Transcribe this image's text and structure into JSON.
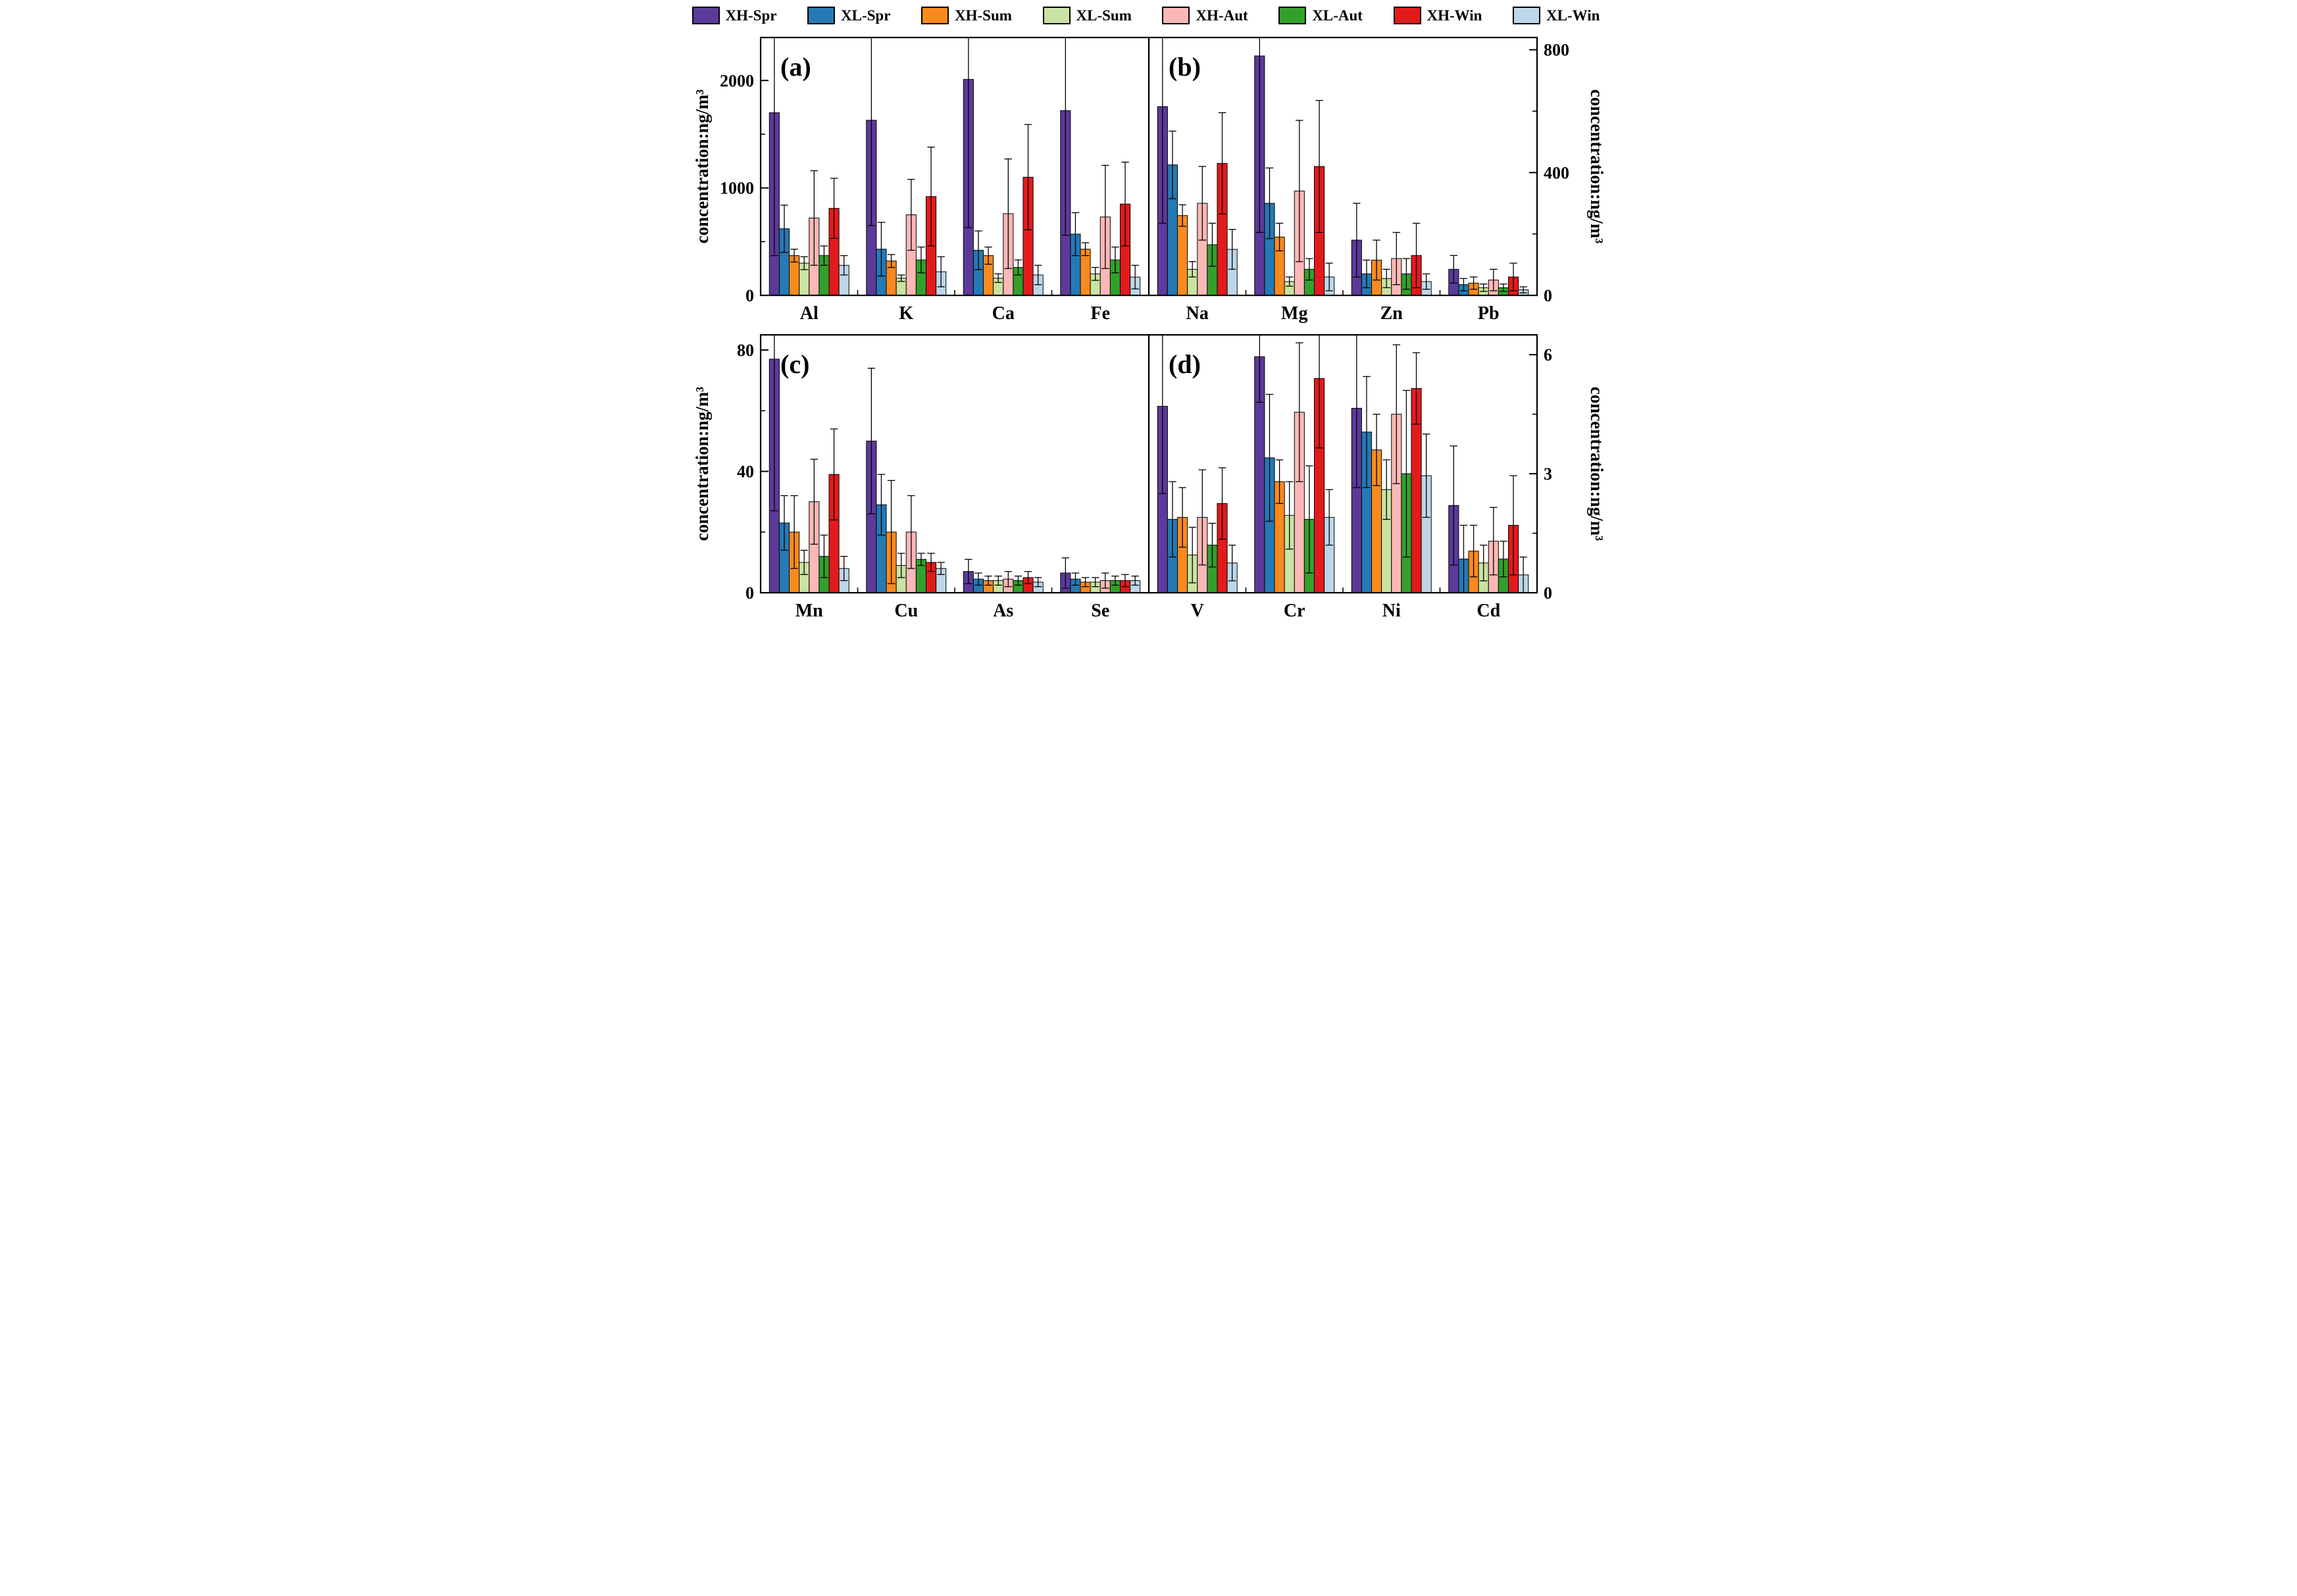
{
  "legend": {
    "items": [
      {
        "label": "XH-Spr",
        "color": "#5C3A99"
      },
      {
        "label": "XL-Spr",
        "color": "#2579B5"
      },
      {
        "label": "XH-Sum",
        "color": "#FB8A1E"
      },
      {
        "label": "XL-Sum",
        "color": "#C9E3A2"
      },
      {
        "label": "XH-Aut",
        "color": "#FBB8B6"
      },
      {
        "label": "XL-Aut",
        "color": "#33A02C"
      },
      {
        "label": "XH-Win",
        "color": "#E31A1C"
      },
      {
        "label": "XL-Win",
        "color": "#BDD7E8"
      }
    ]
  },
  "chart_data": {
    "type": "bar",
    "description": "Grouped bar chart with error bars, 4 panels (a)-(d), seasonal element concentrations at sites XH and XL",
    "series_order": [
      "XH-Spr",
      "XL-Spr",
      "XH-Sum",
      "XL-Sum",
      "XH-Aut",
      "XL-Aut",
      "XH-Win",
      "XL-Win"
    ],
    "panels": [
      {
        "id": "a",
        "label": "(a)",
        "axis_side": "left",
        "ylabel": "concentration:ng/m³",
        "ylim": [
          0,
          2400
        ],
        "yticks": [
          0,
          1000,
          2000
        ],
        "yminor": [
          500,
          1500
        ],
        "categories": [
          "Al",
          "K",
          "Ca",
          "Fe"
        ],
        "series": [
          {
            "name": "XH-Spr",
            "values": [
              1700,
              1630,
              2010,
              1720
            ],
            "errors": [
              1330,
              980,
              1380,
              1160
            ]
          },
          {
            "name": "XL-Spr",
            "values": [
              620,
              430,
              420,
              570
            ],
            "errors": [
              220,
              250,
              180,
              200
            ]
          },
          {
            "name": "XH-Sum",
            "values": [
              370,
              320,
              370,
              430
            ],
            "errors": [
              60,
              60,
              80,
              60
            ]
          },
          {
            "name": "XL-Sum",
            "values": [
              300,
              160,
              160,
              200
            ],
            "errors": [
              60,
              30,
              40,
              60
            ]
          },
          {
            "name": "XH-Aut",
            "values": [
              720,
              750,
              760,
              730
            ],
            "errors": [
              440,
              330,
              510,
              480
            ]
          },
          {
            "name": "XL-Aut",
            "values": [
              370,
              330,
              260,
              330
            ],
            "errors": [
              90,
              120,
              70,
              120
            ]
          },
          {
            "name": "XH-Win",
            "values": [
              810,
              920,
              1100,
              850
            ],
            "errors": [
              280,
              460,
              490,
              390
            ]
          },
          {
            "name": "XL-Win",
            "values": [
              280,
              220,
              190,
              170
            ],
            "errors": [
              90,
              140,
              90,
              110
            ]
          }
        ]
      },
      {
        "id": "b",
        "label": "(b)",
        "axis_side": "right",
        "ylabel": "concentration:ng/m³",
        "ylim": [
          0,
          840
        ],
        "yticks": [
          0,
          400,
          800
        ],
        "yminor": [
          200,
          600
        ],
        "categories": [
          "Na",
          "Mg",
          "Zn",
          "Pb"
        ],
        "series": [
          {
            "name": "XH-Spr",
            "values": [
              615,
              780,
              180,
              85
            ],
            "errors": [
              380,
              575,
              120,
              45
            ]
          },
          {
            "name": "XL-Spr",
            "values": [
              425,
              300,
              70,
              35
            ],
            "errors": [
              110,
              115,
              45,
              20
            ]
          },
          {
            "name": "XH-Sum",
            "values": [
              260,
              190,
              115,
              40
            ],
            "errors": [
              35,
              45,
              65,
              20
            ]
          },
          {
            "name": "XL-Sum",
            "values": [
              85,
              45,
              55,
              25
            ],
            "errors": [
              25,
              15,
              30,
              12
            ]
          },
          {
            "name": "XH-Aut",
            "values": [
              300,
              340,
              120,
              50
            ],
            "errors": [
              120,
              230,
              85,
              35
            ]
          },
          {
            "name": "XL-Aut",
            "values": [
              165,
              85,
              70,
              25
            ],
            "errors": [
              70,
              35,
              50,
              12
            ]
          },
          {
            "name": "XH-Win",
            "values": [
              430,
              420,
              130,
              60
            ],
            "errors": [
              165,
              215,
              105,
              45
            ]
          },
          {
            "name": "XL-Win",
            "values": [
              150,
              60,
              45,
              18
            ],
            "errors": [
              65,
              45,
              25,
              10
            ]
          }
        ]
      },
      {
        "id": "c",
        "label": "(c)",
        "axis_side": "left",
        "ylabel": "concentration:ng/m³",
        "ylim": [
          0,
          85
        ],
        "yticks": [
          0,
          40,
          80
        ],
        "yminor": [
          20,
          60
        ],
        "categories": [
          "Mn",
          "Cu",
          "As",
          "Se"
        ],
        "series": [
          {
            "name": "XH-Spr",
            "values": [
              77,
              50,
              7,
              6.5
            ],
            "errors": [
              50,
              24,
              4,
              5
            ]
          },
          {
            "name": "XL-Spr",
            "values": [
              23,
              29,
              4.5,
              4.5
            ],
            "errors": [
              9,
              10,
              2,
              2
            ]
          },
          {
            "name": "XH-Sum",
            "values": [
              20,
              20,
              4,
              3.5
            ],
            "errors": [
              12,
              17,
              1.5,
              1.5
            ]
          },
          {
            "name": "XL-Sum",
            "values": [
              10,
              9,
              4,
              3.5
            ],
            "errors": [
              4,
              4,
              1.5,
              1.5
            ]
          },
          {
            "name": "XH-Aut",
            "values": [
              30,
              20,
              4.5,
              4
            ],
            "errors": [
              14,
              12,
              2.5,
              2.5
            ]
          },
          {
            "name": "XL-Aut",
            "values": [
              12,
              11,
              4,
              4
            ],
            "errors": [
              7,
              2,
              1.5,
              1.5
            ]
          },
          {
            "name": "XH-Win",
            "values": [
              39,
              10,
              5,
              4
            ],
            "errors": [
              15,
              3,
              2,
              2
            ]
          },
          {
            "name": "XL-Win",
            "values": [
              8,
              8,
              3.5,
              4
            ],
            "errors": [
              4,
              2,
              1.5,
              1.5
            ]
          }
        ]
      },
      {
        "id": "d",
        "label": "(d)",
        "axis_side": "right",
        "ylabel": "concentration:ng/m³",
        "ylim": [
          0,
          6.5
        ],
        "yticks": [
          0,
          3,
          6
        ],
        "yminor": [
          1.5,
          4.5
        ],
        "categories": [
          "V",
          "Cr",
          "Ni",
          "Cd"
        ],
        "series": [
          {
            "name": "XH-Spr",
            "values": [
              4.7,
              5.95,
              4.65,
              2.2
            ],
            "errors": [
              2.2,
              1.15,
              2.0,
              1.5
            ]
          },
          {
            "name": "XL-Spr",
            "values": [
              1.85,
              3.4,
              4.05,
              0.85
            ],
            "errors": [
              0.95,
              1.6,
              1.4,
              0.85
            ]
          },
          {
            "name": "XH-Sum",
            "values": [
              1.9,
              2.8,
              3.6,
              1.05
            ],
            "errors": [
              0.75,
              0.55,
              0.9,
              0.65
            ]
          },
          {
            "name": "XL-Sum",
            "values": [
              0.95,
              1.95,
              2.6,
              0.75
            ],
            "errors": [
              0.7,
              0.85,
              0.75,
              0.45
            ]
          },
          {
            "name": "XH-Aut",
            "values": [
              1.9,
              4.55,
              4.5,
              1.3
            ],
            "errors": [
              1.2,
              1.75,
              1.75,
              0.85
            ]
          },
          {
            "name": "XL-Aut",
            "values": [
              1.2,
              1.85,
              3.0,
              0.85
            ],
            "errors": [
              0.55,
              1.35,
              2.1,
              0.45
            ]
          },
          {
            "name": "XH-Win",
            "values": [
              2.25,
              5.4,
              5.15,
              1.7
            ],
            "errors": [
              0.9,
              1.75,
              0.9,
              1.25
            ]
          },
          {
            "name": "XL-Win",
            "values": [
              0.75,
              1.9,
              2.95,
              0.45
            ],
            "errors": [
              0.45,
              0.7,
              1.05,
              0.45
            ]
          }
        ]
      }
    ]
  }
}
